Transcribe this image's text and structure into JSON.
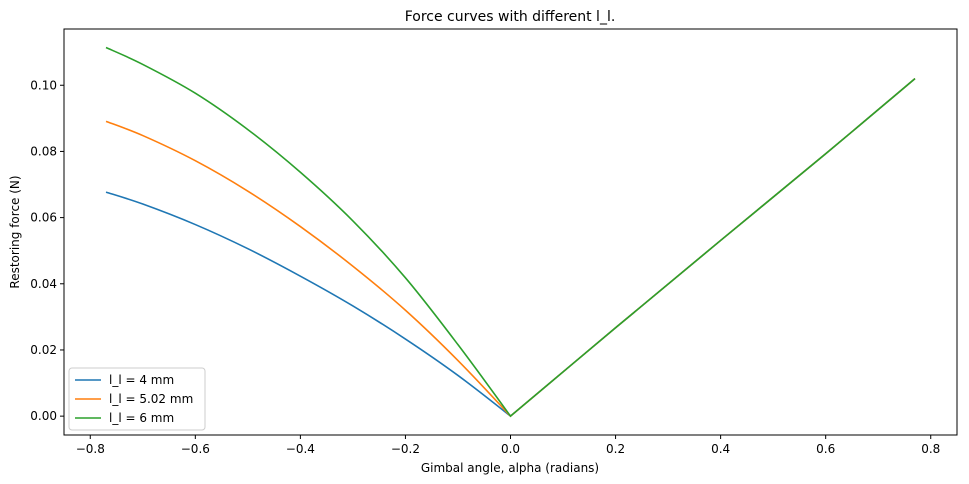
{
  "chart_data": {
    "type": "line",
    "title": "Force curves with different l_l.",
    "xlabel": "Gimbal angle, alpha (radians)",
    "ylabel": "Restoring force (N)",
    "xlim": [
      -0.85,
      0.85
    ],
    "ylim": [
      -0.0057,
      0.117
    ],
    "xticks": [
      -0.8,
      -0.6,
      -0.4,
      -0.2,
      0.0,
      0.2,
      0.4,
      0.6,
      0.8
    ],
    "xtick_labels": [
      "−0.8",
      "−0.6",
      "−0.4",
      "−0.2",
      "0.0",
      "0.2",
      "0.4",
      "0.6",
      "0.8"
    ],
    "yticks": [
      0.0,
      0.02,
      0.04,
      0.06,
      0.08,
      0.1
    ],
    "ytick_labels": [
      "0.00",
      "0.02",
      "0.04",
      "0.06",
      "0.08",
      "0.10"
    ],
    "grid": false,
    "legend_position": "lower-left",
    "series": [
      {
        "name": "l_l = 4 mm",
        "color": "#1f77b4",
        "x": [
          -0.77,
          -0.7,
          -0.6,
          -0.5,
          -0.4,
          -0.3,
          -0.2,
          -0.1,
          0.0,
          0.2,
          0.4,
          0.6,
          0.77
        ],
        "y": [
          0.0677,
          0.0641,
          0.0579,
          0.0506,
          0.0423,
          0.0333,
          0.0233,
          0.0123,
          0.0,
          0.0267,
          0.0531,
          0.0793,
          0.102
        ]
      },
      {
        "name": "l_l = 5.02 mm",
        "color": "#ff7f0e",
        "x": [
          -0.77,
          -0.7,
          -0.6,
          -0.5,
          -0.4,
          -0.3,
          -0.2,
          -0.1,
          0.0,
          0.2,
          0.4,
          0.6,
          0.77
        ],
        "y": [
          0.0891,
          0.0848,
          0.0772,
          0.068,
          0.0573,
          0.0453,
          0.032,
          0.0168,
          0.0,
          0.0267,
          0.0531,
          0.0793,
          0.102
        ]
      },
      {
        "name": "l_l = 6 mm",
        "color": "#2ca02c",
        "x": [
          -0.77,
          -0.7,
          -0.6,
          -0.5,
          -0.4,
          -0.3,
          -0.2,
          -0.1,
          0.0,
          0.2,
          0.4,
          0.6,
          0.77
        ],
        "y": [
          0.1114,
          0.1063,
          0.0976,
          0.0866,
          0.0737,
          0.059,
          0.0418,
          0.0216,
          0.0,
          0.0267,
          0.0531,
          0.0793,
          0.102
        ]
      }
    ]
  }
}
